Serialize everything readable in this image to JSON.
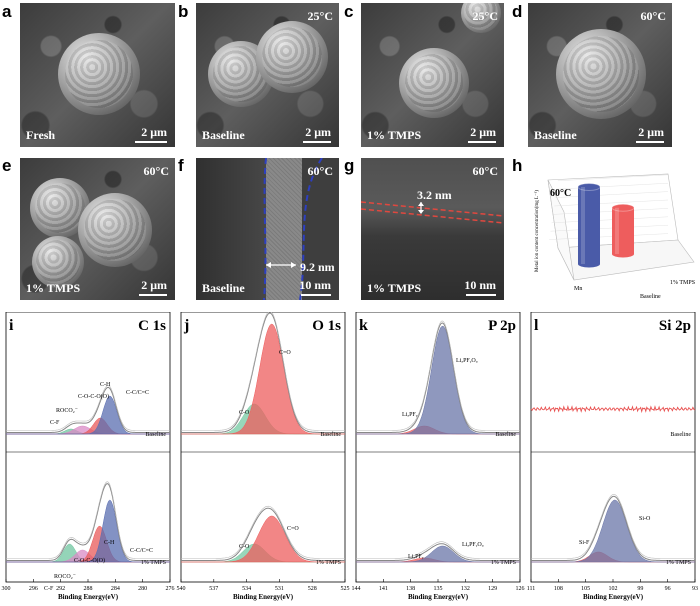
{
  "sem_row1": [
    {
      "letter": "a",
      "label": "Fresh",
      "temp": "",
      "scale": "2 μm"
    },
    {
      "letter": "b",
      "label": "Baseline",
      "temp": "25°C",
      "scale": "2 μm"
    },
    {
      "letter": "c",
      "label": "1% TMPS",
      "temp": "25°C",
      "scale": "2 μm"
    },
    {
      "letter": "d",
      "label": "Baseline",
      "temp": "60°C",
      "scale": "2 μm"
    }
  ],
  "sem_row2": [
    {
      "letter": "e",
      "label": "1% TMPS",
      "temp": "60°C",
      "scale": "2 μm"
    },
    {
      "letter": "f",
      "label": "Baseline",
      "temp": "60°C",
      "scale": "10 nm",
      "thickness": "9.2 nm"
    },
    {
      "letter": "g",
      "label": "1% TMPS",
      "temp": "60°C",
      "scale": "10 nm",
      "thickness": "3.2 nm"
    }
  ],
  "panel_h": {
    "letter": "h",
    "temp": "60°C",
    "ylabel": "Metal ion content concentration(mg L⁻¹)",
    "xaxis_element": "Mn",
    "group_labels": [
      "Baseline",
      "1% TMPS"
    ]
  },
  "chart_data": {
    "type": "bar",
    "title": "60°C",
    "categories": [
      "Baseline",
      "1% TMPS"
    ],
    "series": [
      {
        "name": "Mn",
        "values": [
          1.75,
          1.05
        ],
        "colors": [
          "#4a5ba8",
          "#ee5d5d"
        ]
      }
    ],
    "ylabel": "Metal ion content concentration(mg L⁻¹)",
    "ylim": [
      0,
      2.0
    ]
  },
  "xps": [
    {
      "letter": "i",
      "title": "C 1s",
      "xlabel": "Binding Energy(eV)",
      "ticks": [
        "300",
        "296",
        "292",
        "288",
        "284",
        "280",
        "276"
      ],
      "top_tag": "Baseline",
      "bottom_tag": "1% TMPS",
      "top_labels": [
        "C-H",
        "C-C/C=C",
        "C-O-C-O(O)",
        "ROCO₂⁻",
        "C-F"
      ],
      "bottom_labels": [
        "C-H",
        "C-C/C=C",
        "C-O-C-O(O)",
        "ROCO₂⁻",
        "C-F"
      ]
    },
    {
      "letter": "j",
      "title": "O 1s",
      "xlabel": "Binding Energy(eV)",
      "ticks": [
        "540",
        "537",
        "534",
        "531",
        "528",
        "525"
      ],
      "top_tag": "Baseline",
      "bottom_tag": "1% TMPS",
      "top_labels": [
        "C=O",
        "C-O"
      ],
      "bottom_labels": [
        "C=O",
        "C-O"
      ]
    },
    {
      "letter": "k",
      "title": "P 2p",
      "xlabel": "Binding Energy(eV)",
      "ticks": [
        "144",
        "141",
        "138",
        "135",
        "132",
        "129",
        "126"
      ],
      "top_tag": "Baseline",
      "bottom_tag": "1% TMPS",
      "top_labels": [
        "LiₓPFᵧOᵤ",
        "LiₓPFᵧ"
      ],
      "bottom_labels": [
        "LiₓPFᵧOᵤ",
        "LiₓPFᵧ"
      ]
    },
    {
      "letter": "l",
      "title": "Si 2p",
      "xlabel": "Binding Energy(eV)",
      "ticks": [
        "111",
        "108",
        "105",
        "102",
        "99",
        "96",
        "93"
      ],
      "top_tag": "Baseline",
      "bottom_tag": "1% TMPS",
      "top_labels": [],
      "bottom_labels": [
        "Si-O",
        "Si-F"
      ]
    }
  ]
}
